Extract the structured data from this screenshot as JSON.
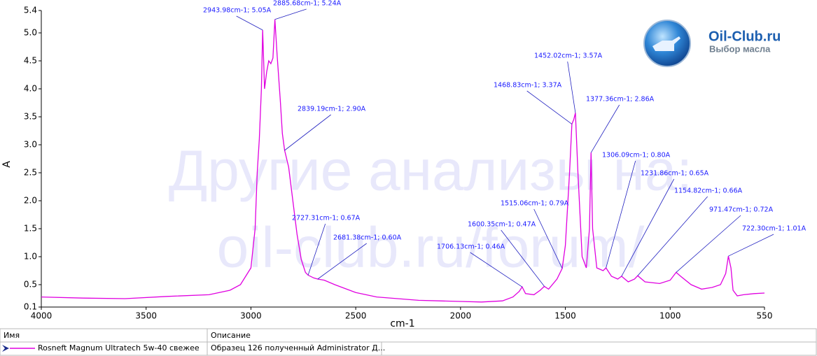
{
  "chart_data": {
    "type": "line",
    "x_label": "cm-1",
    "y_label": "A",
    "xlim": [
      4000,
      550
    ],
    "ylim": [
      0.1,
      5.4
    ],
    "xticks": [
      4000,
      3500,
      3000,
      2500,
      2000,
      1500,
      1000,
      550
    ],
    "yticks": [
      0.1,
      0.5,
      {
        "value": 1,
        "label": "1.0"
      },
      1.5,
      {
        "value": 2,
        "label": "2.0"
      },
      2.5,
      {
        "value": 3,
        "label": "3.0"
      },
      3.5,
      {
        "value": 4,
        "label": "4.0"
      },
      4.5,
      {
        "value": 5,
        "label": "5.0"
      },
      5.4
    ],
    "x": [
      4000,
      3800,
      3600,
      3400,
      3200,
      3100,
      3050,
      3000,
      2980,
      2970,
      2960,
      2950,
      2943.98,
      2935,
      2925,
      2915,
      2905,
      2895,
      2885.68,
      2875,
      2860,
      2850,
      2839.19,
      2820,
      2800,
      2780,
      2760,
      2740,
      2727.31,
      2700,
      2681.38,
      2650,
      2600,
      2500,
      2400,
      2300,
      2200,
      2100,
      2000,
      1900,
      1800,
      1750,
      1720,
      1706.13,
      1690,
      1650,
      1620,
      1600.35,
      1580,
      1540,
      1515.06,
      1500,
      1480,
      1468.83,
      1460,
      1452.02,
      1440,
      1420,
      1400,
      1385,
      1377.36,
      1370,
      1350,
      1320,
      1306.09,
      1280,
      1250,
      1231.86,
      1200,
      1170,
      1154.82,
      1120,
      1050,
      1000,
      971.47,
      950,
      900,
      850,
      800,
      760,
      735,
      722.3,
      710,
      700,
      680,
      650,
      600,
      550
    ],
    "series": [
      {
        "name": "Rosneft Magnum Ultratech 5w-40 свежее",
        "color": "#e000e0",
        "values": [
          0.28,
          0.26,
          0.25,
          0.29,
          0.32,
          0.4,
          0.5,
          0.8,
          1.5,
          2.5,
          3.1,
          4.0,
          5.05,
          4.0,
          4.3,
          4.5,
          4.45,
          4.55,
          5.24,
          4.6,
          3.8,
          3.2,
          2.9,
          2.6,
          2.0,
          1.4,
          0.95,
          0.72,
          0.67,
          0.62,
          0.6,
          0.58,
          0.5,
          0.36,
          0.28,
          0.25,
          0.22,
          0.21,
          0.2,
          0.19,
          0.21,
          0.28,
          0.38,
          0.46,
          0.34,
          0.32,
          0.4,
          0.47,
          0.42,
          0.6,
          0.79,
          1.2,
          2.5,
          3.37,
          3.45,
          3.57,
          2.5,
          1.0,
          0.8,
          1.5,
          2.86,
          1.5,
          0.8,
          0.75,
          0.8,
          0.65,
          0.6,
          0.65,
          0.55,
          0.6,
          0.66,
          0.55,
          0.52,
          0.58,
          0.72,
          0.65,
          0.5,
          0.42,
          0.45,
          0.5,
          0.7,
          1.01,
          0.8,
          0.4,
          0.3,
          0.32,
          0.34,
          0.35
        ]
      }
    ],
    "annotations": [
      {
        "label": "2943.98cm-1; 5.05A",
        "x": 2943.98,
        "y": 5.05
      },
      {
        "label": "2885.68cm-1; 5.24A",
        "x": 2885.68,
        "y": 5.24
      },
      {
        "label": "2839.19cm-1; 2.90A",
        "x": 2839.19,
        "y": 2.9
      },
      {
        "label": "2727.31cm-1; 0.67A",
        "x": 2727.31,
        "y": 0.67
      },
      {
        "label": "2681.38cm-1; 0.60A",
        "x": 2681.38,
        "y": 0.6
      },
      {
        "label": "1706.13cm-1; 0.46A",
        "x": 1706.13,
        "y": 0.46
      },
      {
        "label": "1600.35cm-1; 0.47A",
        "x": 1600.35,
        "y": 0.47
      },
      {
        "label": "1515.06cm-1; 0.79A",
        "x": 1515.06,
        "y": 0.79
      },
      {
        "label": "1468.83cm-1; 3.37A",
        "x": 1468.83,
        "y": 3.37
      },
      {
        "label": "1452.02cm-1; 3.57A",
        "x": 1452.02,
        "y": 3.57
      },
      {
        "label": "1377.36cm-1; 2.86A",
        "x": 1377.36,
        "y": 2.86
      },
      {
        "label": "1306.09cm-1; 0.80A",
        "x": 1306.09,
        "y": 0.8
      },
      {
        "label": "1231.86cm-1; 0.65A",
        "x": 1231.86,
        "y": 0.65
      },
      {
        "label": "1154.82cm-1; 0.66A",
        "x": 1154.82,
        "y": 0.66
      },
      {
        "label": "971.47cm-1; 0.72A",
        "x": 971.47,
        "y": 0.72
      },
      {
        "label": "722.30cm-1; 1.01A",
        "x": 722.3,
        "y": 1.01
      }
    ]
  },
  "watermark": [
    "Другие анализы на:",
    "oil-club.ru/forum/"
  ],
  "logo": {
    "title": "Oil-Club.ru",
    "subtitle": "Выбор масла"
  },
  "table": {
    "headers": [
      "Имя",
      "Описание"
    ],
    "description": "Образец 126 полученный Administrator Д..."
  }
}
